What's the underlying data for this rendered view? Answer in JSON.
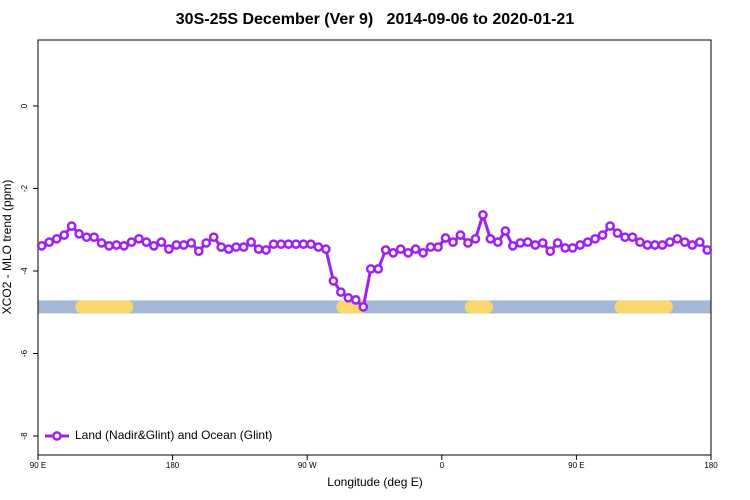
{
  "chart_data": {
    "type": "line",
    "title": "30S-25S December (Ver 9)   2014-09-06 to 2020-01-21",
    "xlabel": "Longitude (deg E)",
    "ylabel": "XCO2 - MLO trend (ppm)",
    "xlim": [
      90,
      540
    ],
    "ylim": [
      -8.46,
      1.6
    ],
    "xticks": [
      {
        "value": 90,
        "label": "90 E"
      },
      180,
      {
        "value": 270,
        "label": "90 W"
      },
      {
        "value": 360,
        "label": "0"
      },
      {
        "value": 450,
        "label": "90 E"
      },
      {
        "value": 540,
        "label": "180"
      }
    ],
    "yticks": [
      0,
      -2,
      -4,
      -6,
      -8
    ],
    "legend": "bottom-left",
    "x": [
      92.5,
      97.5,
      102.5,
      107.5,
      112.5,
      117.5,
      122.5,
      127.5,
      132.5,
      137.5,
      142.5,
      147.5,
      152.5,
      157.5,
      162.5,
      167.5,
      172.5,
      177.5,
      182.5,
      187.5,
      192.5,
      197.5,
      202.5,
      207.5,
      212.5,
      217.5,
      222.5,
      227.5,
      232.5,
      237.5,
      242.5,
      247.5,
      252.5,
      257.5,
      262.5,
      267.5,
      272.5,
      277.5,
      282.5,
      287.5,
      292.5,
      297.5,
      302.5,
      307.5,
      312.5,
      317.5,
      322.5,
      327.5,
      332.5,
      337.5,
      342.5,
      347.5,
      352.5,
      357.5,
      362.5,
      367.5,
      372.5,
      377.5,
      382.5,
      387.5,
      392.5,
      397.5,
      402.5,
      407.5,
      412.5,
      417.5,
      422.5,
      427.5,
      432.5,
      437.5,
      442.5,
      447.5,
      452.5,
      457.5,
      462.5,
      467.5,
      472.5,
      477.5,
      482.5,
      487.5,
      492.5,
      497.5,
      502.5,
      507.5,
      512.5,
      517.5,
      522.5,
      527.5,
      532.5,
      537.5
    ],
    "series": [
      {
        "name": "Land (Nadir&Glint) and Ocean (Glint)",
        "color": "#a020f0",
        "values": [
          -3.39,
          -3.3,
          -3.22,
          -3.13,
          -2.91,
          -3.1,
          -3.18,
          -3.18,
          -3.32,
          -3.39,
          -3.37,
          -3.39,
          -3.3,
          -3.22,
          -3.3,
          -3.39,
          -3.3,
          -3.47,
          -3.37,
          -3.37,
          -3.32,
          -3.52,
          -3.32,
          -3.18,
          -3.42,
          -3.47,
          -3.42,
          -3.42,
          -3.3,
          -3.47,
          -3.49,
          -3.35,
          -3.35,
          -3.35,
          -3.35,
          -3.35,
          -3.35,
          -3.42,
          -3.47,
          -4.24,
          -4.51,
          -4.65,
          -4.7,
          -4.87,
          -3.95,
          -3.95,
          -3.49,
          -3.56,
          -3.47,
          -3.56,
          -3.47,
          -3.56,
          -3.42,
          -3.42,
          -3.2,
          -3.3,
          -3.13,
          -3.32,
          -3.22,
          -2.64,
          -3.22,
          -3.3,
          -3.03,
          -3.39,
          -3.32,
          -3.3,
          -3.37,
          -3.32,
          -3.52,
          -3.32,
          -3.44,
          -3.44,
          -3.37,
          -3.3,
          -3.22,
          -3.13,
          -2.91,
          -3.08,
          -3.18,
          -3.18,
          -3.3,
          -3.37,
          -3.37,
          -3.37,
          -3.3,
          -3.22,
          -3.3,
          -3.37,
          -3.3,
          -3.49
        ]
      }
    ],
    "surface_band": {
      "y": -4.87,
      "ocean_color": "#a3b8d6",
      "land_color": "#fad76e",
      "ocean": [
        [
          90,
          540
        ]
      ],
      "land": [
        [
          114.9,
          153.8
        ],
        [
          289.5,
          309.6
        ],
        [
          375.4,
          394.3
        ],
        [
          475.5,
          514.5
        ]
      ]
    }
  }
}
